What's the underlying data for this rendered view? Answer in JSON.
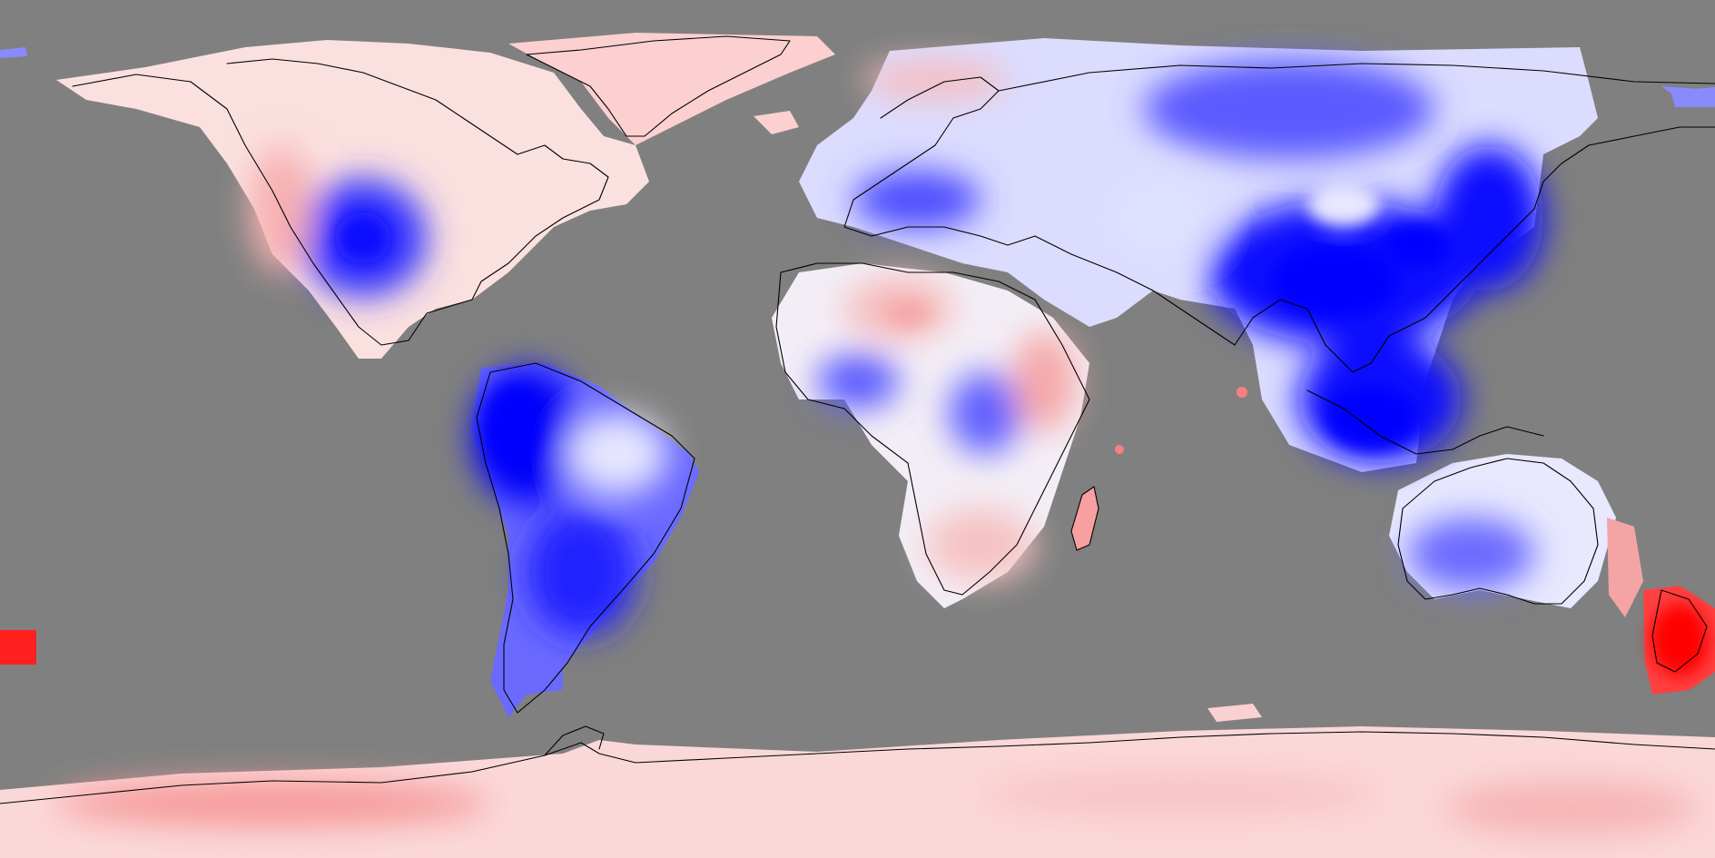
{
  "map": {
    "projection": "equirectangular",
    "ocean_color": "#808080",
    "coastline_color": "#000000",
    "color_scale": {
      "negative_color": "#0000ff",
      "neutral_color": "#ffffff",
      "positive_color": "#ff0000",
      "masked_color": "#808080"
    },
    "legend": null,
    "title": ""
  }
}
